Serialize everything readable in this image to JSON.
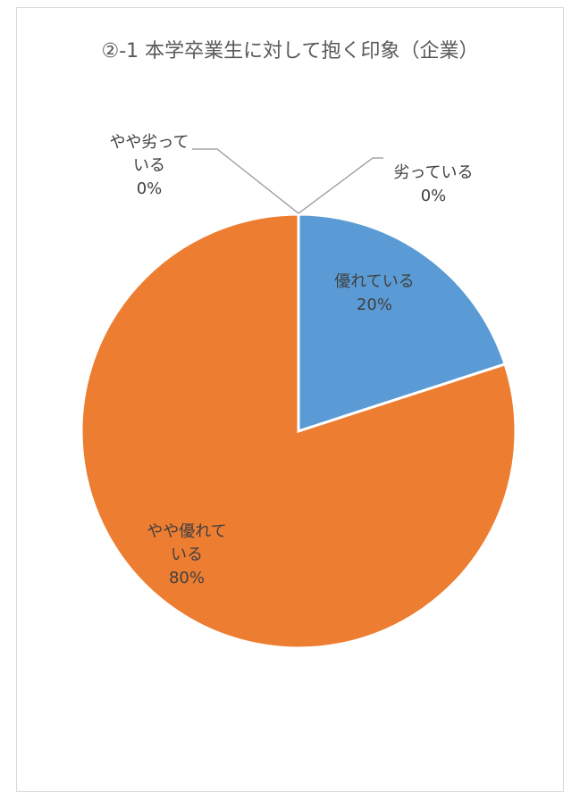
{
  "chart_data": {
    "type": "pie",
    "title": "②-1 本学卒業生に対して抱く印象（企業）",
    "slices": [
      {
        "name": "優れている",
        "value": 20,
        "label": "20%",
        "color": "#5b9bd5"
      },
      {
        "name": "やや優れている",
        "value": 80,
        "label": "80%",
        "color": "#ed7d31"
      },
      {
        "name": "やや劣っている",
        "value": 0,
        "label": "0%",
        "color": "#a5a5a5"
      },
      {
        "name": "劣っている",
        "value": 0,
        "label": "0%",
        "color": "#ffc000"
      }
    ],
    "legend": "none",
    "label_style": "category-and-percentage"
  }
}
